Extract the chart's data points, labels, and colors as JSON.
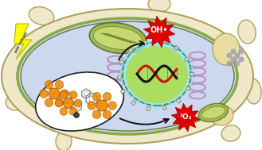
{
  "cell_outer_color": "#f0e8c8",
  "cell_inner_color": "#ccd8ee",
  "cell_wall_color": "#8aaa48",
  "nucleus_green": "#aadd60",
  "nucleus_glow": "#60eef0",
  "er_color": "#c090c8",
  "mito_outer": "#a0b858",
  "mito_inner": "#c8d870",
  "vacuole_color": "#e8dda0",
  "vesicle_bg": "#f8f8f8",
  "lightning_color": "#ffff00",
  "lightning_edge": "#b8b800",
  "lightning_text": "400-700 nm",
  "oh_color": "#dd0000",
  "oh_text": "OH•",
  "o2_color": "#dd0000",
  "o2_text": "¹O₂",
  "cu_orange": "#ee8800",
  "cu_edge": "#aa5500",
  "ligand_color": "#909090",
  "arrow_color": "#101010",
  "dna_red": "#cc1010",
  "dna_black": "#101010",
  "dot_color": "#9898b8",
  "background": "#ffffff",
  "fw": 3.29,
  "fh": 1.89
}
